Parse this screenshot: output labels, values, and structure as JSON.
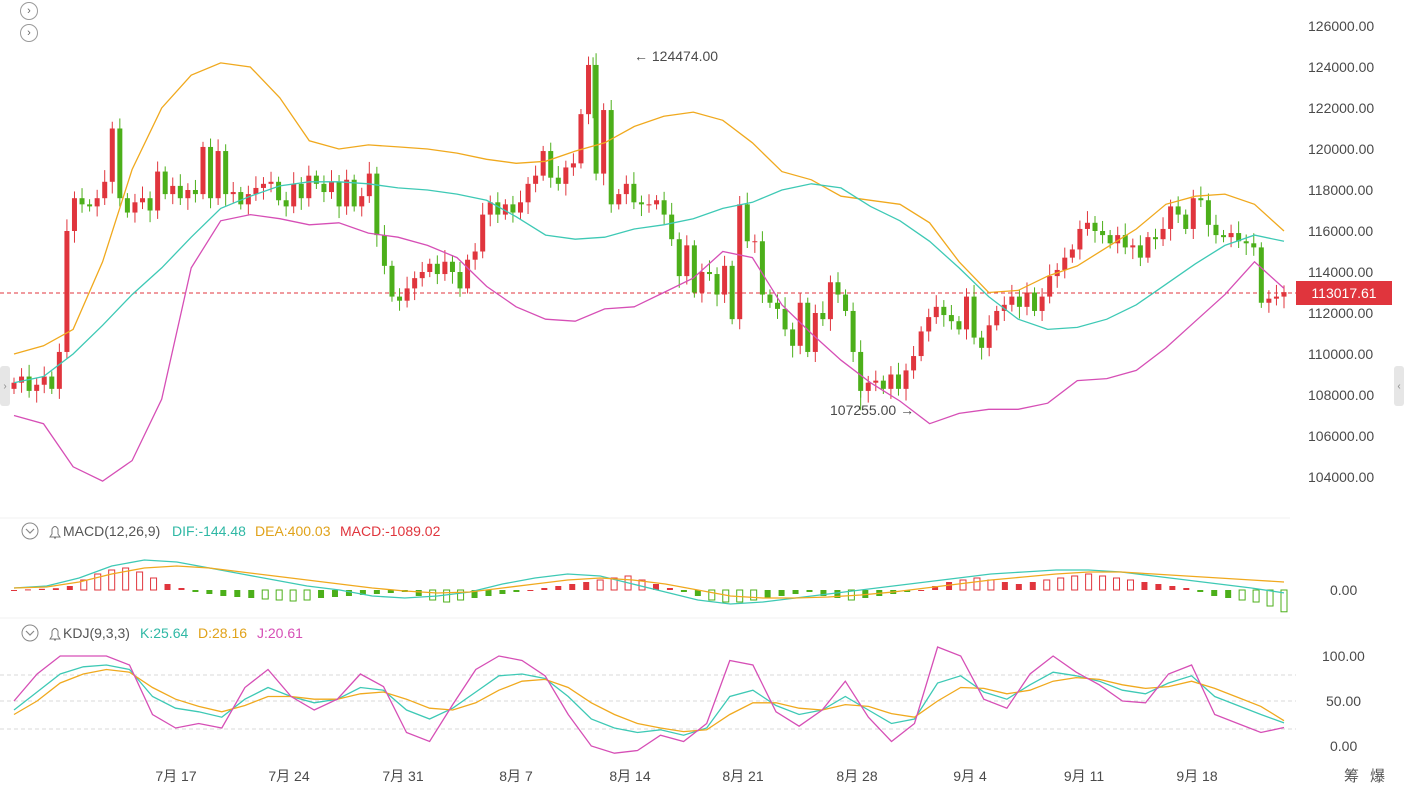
{
  "nav": {
    "forward_icon_1": "chevron-right-icon",
    "forward_icon_2": "chevron-right-icon"
  },
  "price_axis": {
    "ticks": [
      "126000.00",
      "124000.00",
      "122000.00",
      "120000.00",
      "118000.00",
      "116000.00",
      "114000.00",
      "112000.00",
      "110000.00",
      "108000.00",
      "106000.00",
      "104000.00"
    ],
    "current_price": "113017.61"
  },
  "annotations": {
    "high_label": "← 124474.00",
    "low_label": "107255.00 →"
  },
  "x_axis": {
    "labels": [
      "7月 17",
      "7月 24",
      "7月 31",
      "8月 7",
      "8月 14",
      "8月 21",
      "8月 28",
      "9月 4",
      "9月 11",
      "9月 18"
    ]
  },
  "macd": {
    "title": "MACD(12,26,9)",
    "dif": "DIF:-144.48",
    "dea": "DEA:400.03",
    "macd": "MACD:-1089.02",
    "axis_zero": "0.00"
  },
  "kdj": {
    "title": "KDJ(9,3,3)",
    "k": "K:25.64",
    "d": "D:28.16",
    "j": "J:20.61",
    "ticks": [
      "100.00",
      "50.00",
      "0.00"
    ]
  },
  "tools": {
    "t1": "筹",
    "t2": "爆"
  },
  "colors": {
    "up": "#e0353d",
    "down": "#4caf1a",
    "boll_upper": "#f0a91e",
    "boll_mid": "#3ec9b5",
    "boll_lower": "#d64fb6",
    "kdj_k": "#3ec9b5",
    "kdj_d": "#f0a91e",
    "kdj_j": "#d64fb6"
  },
  "chart_data": {
    "type": "candlestick",
    "ylim": [
      103000,
      127000
    ],
    "x_tick_labels": [
      "7月 17",
      "7月 24",
      "7月 31",
      "8月 7",
      "8月 14",
      "8月 21",
      "8月 28",
      "9月 4",
      "9月 11",
      "9月 18"
    ],
    "price_high": 124474.0,
    "price_low": 107255.0,
    "last_price": 113017.61,
    "closes": [
      108600,
      108900,
      108200,
      108500,
      108900,
      108300,
      110100,
      116000,
      117600,
      117300,
      117200,
      117600,
      118400,
      121000,
      117600,
      116900,
      117400,
      117600,
      117000,
      118900,
      117800,
      118200,
      117600,
      118000,
      117800,
      120100,
      117600,
      119900,
      117800,
      117900,
      117300,
      117800,
      118100,
      118300,
      118400,
      117500,
      117200,
      118300,
      117600,
      118700,
      118300,
      117900,
      118400,
      117200,
      118500,
      117200,
      117700,
      118800,
      115800,
      114300,
      112800,
      112600,
      113200,
      113700,
      114000,
      114400,
      113900,
      114500,
      114000,
      113200,
      114600,
      115000,
      116800,
      117400,
      116800,
      117300,
      116900,
      117400,
      118300,
      118700,
      119900,
      118600,
      118300,
      119100,
      119300,
      121700,
      124100,
      118800,
      121900,
      117300,
      117800,
      118300,
      117400,
      117300,
      117300,
      117500,
      116800,
      115600,
      113800,
      115300,
      113000,
      114000,
      113900,
      112900,
      114300,
      111700,
      117300,
      115500,
      115500,
      112900,
      112500,
      112200,
      111200,
      110400,
      112500,
      110100,
      112000,
      111700,
      113500,
      112900,
      112100,
      110100,
      108200,
      108600,
      108700,
      108300,
      109000,
      108300,
      109200,
      109900,
      111100,
      111800,
      112300,
      111900,
      111600,
      111200,
      112800,
      110800,
      110300,
      111400,
      112100,
      112400,
      112800,
      112300,
      113000,
      112100,
      112800,
      113800,
      114100,
      114700,
      115100,
      116100,
      116400,
      116000,
      115800,
      115400,
      115800,
      115200,
      115300,
      114700,
      115700,
      115600,
      116100,
      117200,
      116800,
      116100,
      117600,
      117500,
      116300,
      115800,
      115700,
      115900,
      115500,
      115400,
      115200,
      112500,
      112700,
      112800,
      113017.61
    ],
    "bollinger": {
      "upper": [
        110000,
        110400,
        111200,
        114500,
        119000,
        122000,
        123600,
        124200,
        124000,
        122500,
        120400,
        120000,
        120200,
        120100,
        120000,
        119800,
        119500,
        119300,
        119400,
        119900,
        120300,
        121100,
        121600,
        121800,
        121400,
        120300,
        118900,
        118500,
        117700,
        117500,
        117300,
        116400,
        114500,
        113000,
        113100,
        113800,
        114300,
        115200,
        116100,
        117300,
        117700,
        117800,
        117300,
        116000
      ],
      "mid": [
        108600,
        108900,
        110000,
        111400,
        112900,
        114200,
        115700,
        117100,
        117700,
        118200,
        118400,
        118400,
        118300,
        118100,
        118000,
        117800,
        117500,
        116700,
        115800,
        115600,
        115700,
        116100,
        116300,
        116600,
        117100,
        117400,
        118000,
        118300,
        118100,
        117200,
        116500,
        115500,
        114200,
        112800,
        111700,
        111200,
        111300,
        111700,
        112400,
        113400,
        114400,
        115300,
        115800,
        115500
      ],
      "lower": [
        107000,
        106600,
        104500,
        103800,
        104800,
        107800,
        114200,
        116500,
        116800,
        116600,
        116300,
        116400,
        115900,
        115700,
        115300,
        114700,
        113300,
        112300,
        111700,
        111600,
        112200,
        112300,
        113000,
        113700,
        115000,
        114700,
        112400,
        111000,
        109700,
        108600,
        107700,
        106600,
        107100,
        107300,
        107300,
        107600,
        108700,
        108800,
        109200,
        110300,
        111600,
        112900,
        114500,
        113200
      ]
    },
    "macd_hist": [
      0,
      30,
      60,
      90,
      200,
      500,
      800,
      1000,
      1100,
      900,
      600,
      300,
      100,
      -100,
      -200,
      -300,
      -350,
      -400,
      -450,
      -500,
      -550,
      -500,
      -400,
      -350,
      -300,
      -250,
      -200,
      -150,
      -100,
      -300,
      -500,
      -600,
      -500,
      -400,
      -300,
      -200,
      -100,
      0,
      100,
      200,
      300,
      400,
      500,
      600,
      700,
      500,
      300,
      100,
      -100,
      -300,
      -500,
      -600,
      -600,
      -500,
      -400,
      -300,
      -200,
      -100,
      -300,
      -400,
      -500,
      -400,
      -300,
      -200,
      -100,
      0,
      200,
      400,
      500,
      600,
      500,
      400,
      300,
      400,
      500,
      600,
      700,
      800,
      700,
      600,
      500,
      400,
      300,
      200,
      100,
      -100,
      -300,
      -400,
      -500,
      -600,
      -800,
      -1089.02
    ],
    "macd_dif": [
      100,
      200,
      600,
      1200,
      1500,
      1400,
      1100,
      800,
      500,
      200,
      0,
      -300,
      -400,
      -300,
      -100,
      300,
      600,
      800,
      700,
      300,
      -100,
      -500,
      -700,
      -600,
      -400,
      -200,
      0,
      200,
      400,
      600,
      800,
      900,
      1000,
      1000,
      900,
      700,
      500,
      300,
      100,
      -144.48
    ],
    "macd_dea": [
      100,
      150,
      400,
      800,
      1100,
      1200,
      1100,
      900,
      700,
      500,
      300,
      100,
      -50,
      -150,
      -100,
      100,
      300,
      500,
      600,
      500,
      300,
      0,
      -300,
      -400,
      -400,
      -350,
      -250,
      -100,
      100,
      300,
      500,
      650,
      800,
      900,
      900,
      800,
      700,
      600,
      500,
      400.03
    ],
    "kdj_k": [
      40,
      60,
      80,
      88,
      90,
      85,
      55,
      42,
      38,
      32,
      52,
      65,
      55,
      48,
      52,
      65,
      62,
      40,
      30,
      42,
      60,
      78,
      80,
      75,
      55,
      30,
      20,
      15,
      18,
      12,
      20,
      55,
      62,
      45,
      35,
      40,
      55,
      40,
      25,
      30,
      70,
      78,
      60,
      52,
      68,
      82,
      78,
      72,
      62,
      58,
      70,
      78,
      55,
      45,
      35,
      25.64
    ],
    "kdj_d": [
      35,
      50,
      70,
      80,
      85,
      82,
      65,
      52,
      44,
      38,
      45,
      55,
      55,
      52,
      52,
      58,
      60,
      52,
      42,
      40,
      48,
      62,
      72,
      74,
      65,
      48,
      35,
      25,
      20,
      16,
      18,
      35,
      48,
      48,
      42,
      40,
      46,
      44,
      36,
      32,
      50,
      65,
      64,
      58,
      62,
      72,
      76,
      74,
      68,
      64,
      66,
      72,
      64,
      54,
      44,
      28.16
    ],
    "kdj_j": [
      50,
      80,
      100,
      100,
      100,
      90,
      35,
      20,
      25,
      20,
      65,
      85,
      55,
      40,
      52,
      80,
      66,
      15,
      5,
      46,
      85,
      100,
      95,
      78,
      35,
      0,
      -8,
      -5,
      12,
      5,
      25,
      95,
      90,
      38,
      22,
      40,
      72,
      32,
      5,
      25,
      110,
      100,
      52,
      42,
      80,
      100,
      82,
      68,
      50,
      48,
      80,
      90,
      35,
      25,
      15,
      20.61
    ]
  }
}
